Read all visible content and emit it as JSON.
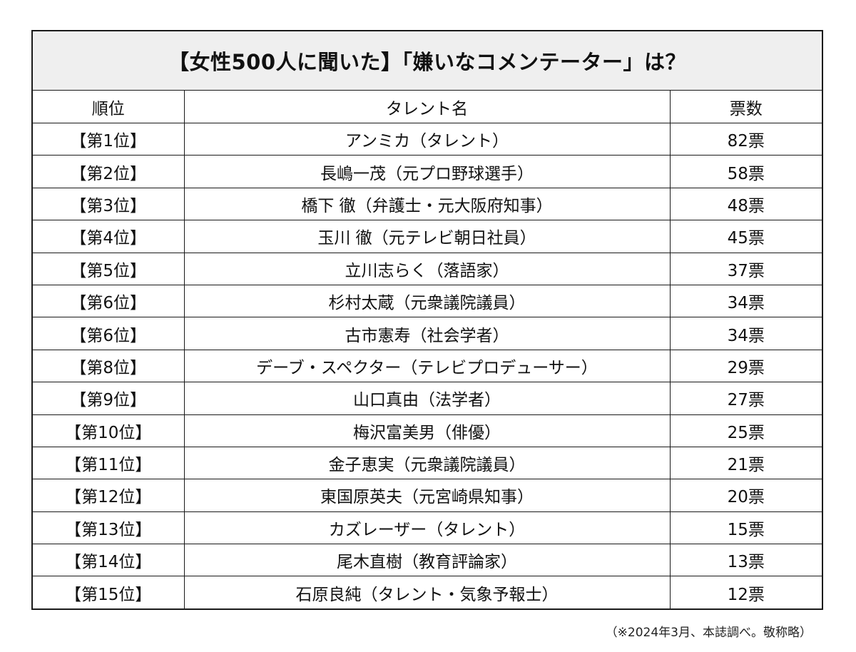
{
  "title": "【女性500人に聞いた】「嫌いなコメンテーター」は？",
  "columns": {
    "rank": "順位",
    "name": "タレント名",
    "votes": "票数"
  },
  "rows": [
    {
      "rank": "【第1位】",
      "name": "アンミカ（タレント）",
      "votes": "82票"
    },
    {
      "rank": "【第2位】",
      "name": "長嶋一茂（元プロ野球選手）",
      "votes": "58票"
    },
    {
      "rank": "【第3位】",
      "name": "橋下 徹（弁護士・元大阪府知事）",
      "votes": "48票"
    },
    {
      "rank": "【第4位】",
      "name": "玉川 徹（元テレビ朝日社員）",
      "votes": "45票"
    },
    {
      "rank": "【第5位】",
      "name": "立川志らく（落語家）",
      "votes": "37票"
    },
    {
      "rank": "【第6位】",
      "name": "杉村太蔵（元衆議院議員）",
      "votes": "34票"
    },
    {
      "rank": "【第6位】",
      "name": "古市憲寿（社会学者）",
      "votes": "34票"
    },
    {
      "rank": "【第8位】",
      "name": "デーブ・スペクター（テレビプロデューサー）",
      "votes": "29票"
    },
    {
      "rank": "【第9位】",
      "name": "山口真由（法学者）",
      "votes": "27票"
    },
    {
      "rank": "【第10位】",
      "name": "梅沢富美男（俳優）",
      "votes": "25票"
    },
    {
      "rank": "【第11位】",
      "name": "金子恵実（元衆議院議員）",
      "votes": "21票"
    },
    {
      "rank": "【第12位】",
      "name": "東国原英夫（元宮崎県知事）",
      "votes": "20票"
    },
    {
      "rank": "【第13位】",
      "name": "カズレーザー（タレント）",
      "votes": "15票"
    },
    {
      "rank": "【第14位】",
      "name": "尾木直樹（教育評論家）",
      "votes": "13票"
    },
    {
      "rank": "【第15位】",
      "name": "石原良純（タレント・気象予報士）",
      "votes": "12票"
    }
  ],
  "footnote": "（※2024年3月、本誌調べ。敬称略）",
  "colors": {
    "title_bg": "#efefef",
    "border": "#1a1a1a",
    "text": "#111111"
  }
}
